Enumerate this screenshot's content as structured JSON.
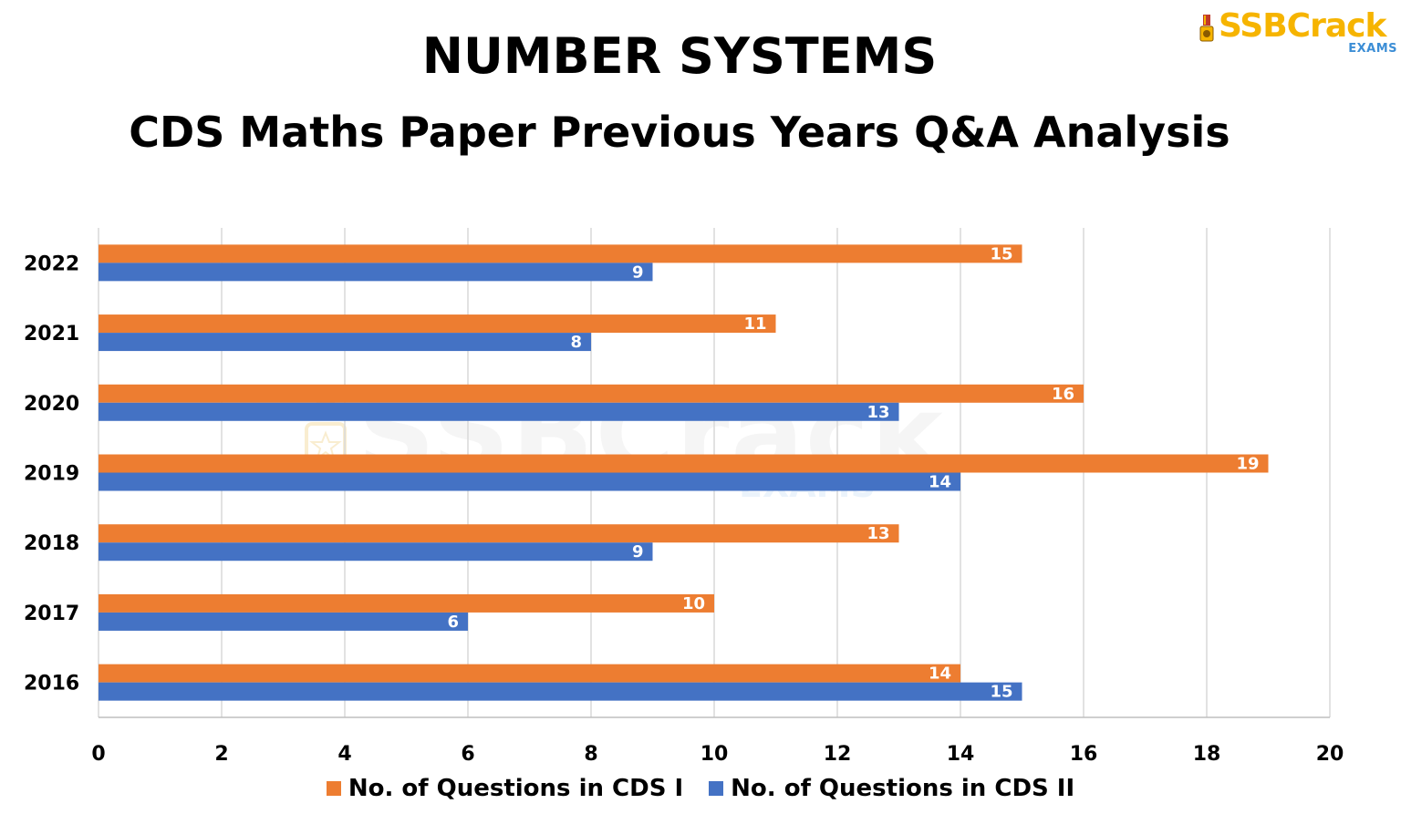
{
  "header": {
    "title": "NUMBER SYSTEMS",
    "subtitle": "CDS Maths Paper Previous Years Q&A Analysis"
  },
  "logo": {
    "brand": "SSBCrack",
    "sub": "EXAMS",
    "brand_color": "#f6b400",
    "sub_color": "#3c8ed6"
  },
  "watermark": {
    "brand": "SSBCrack",
    "sub": "EXAMS"
  },
  "chart_data": {
    "type": "bar",
    "orientation": "horizontal",
    "title": "NUMBER SYSTEMS",
    "subtitle": "CDS Maths Paper Previous Years Q&A Analysis",
    "categories": [
      "2022",
      "2021",
      "2020",
      "2019",
      "2018",
      "2017",
      "2016"
    ],
    "series": [
      {
        "name": "No. of Questions in CDS I",
        "color": "#ed7d31",
        "values": [
          15,
          11,
          16,
          19,
          13,
          10,
          14
        ]
      },
      {
        "name": "No. of Questions in CDS II",
        "color": "#4472c4",
        "values": [
          9,
          8,
          13,
          14,
          9,
          6,
          15
        ]
      }
    ],
    "xlim": [
      0,
      20
    ],
    "xticks": [
      "0",
      "2",
      "4",
      "6",
      "8",
      "10",
      "12",
      "14",
      "16",
      "18",
      "20"
    ],
    "grid": true,
    "legend": "bottom",
    "data_labels": true,
    "xlabel": "",
    "ylabel": ""
  }
}
